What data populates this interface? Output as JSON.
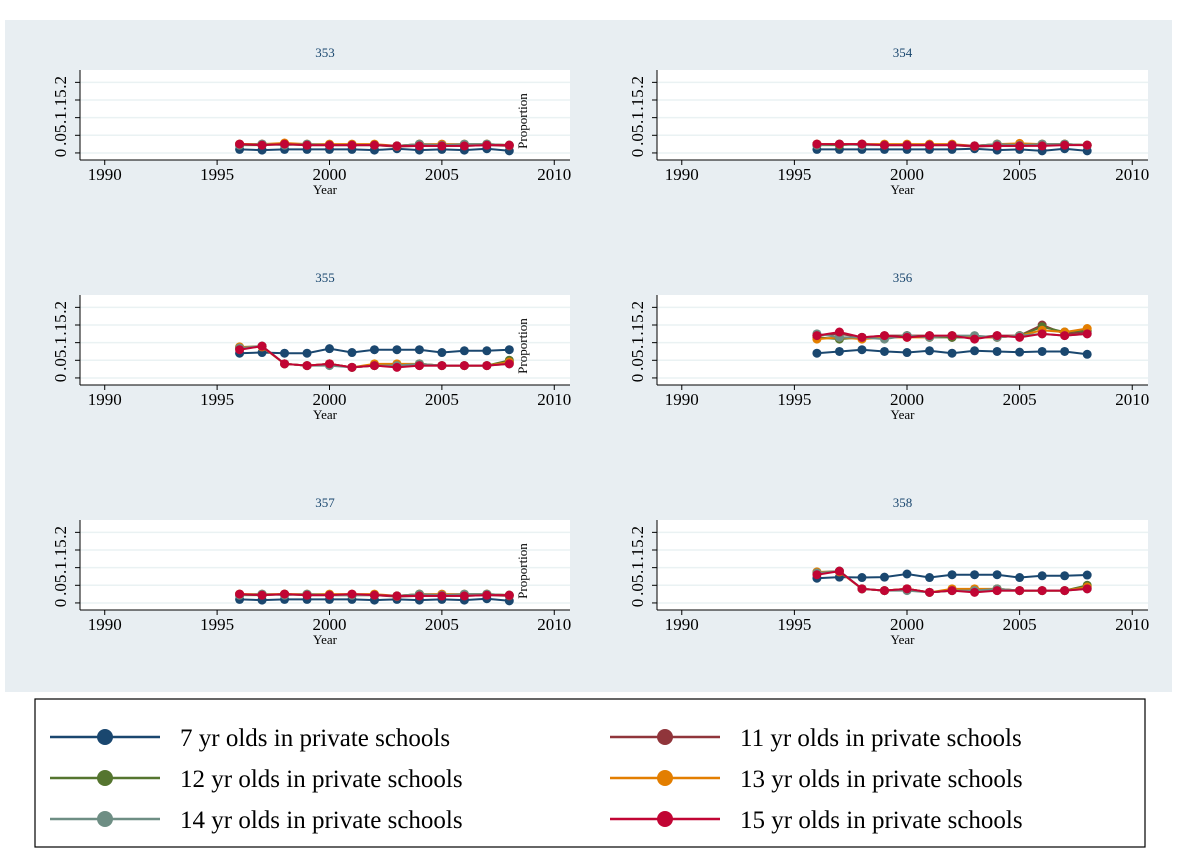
{
  "legend": [
    {
      "name": "7 yr olds in private schools",
      "color": "#1a476f"
    },
    {
      "name": "11 yr olds in private schools",
      "color": "#90353b"
    },
    {
      "name": "12 yr olds in private schools",
      "color": "#55752f"
    },
    {
      "name": "13 yr olds in private schools",
      "color": "#e37e00"
    },
    {
      "name": "14 yr olds in private schools",
      "color": "#6e8e84"
    },
    {
      "name": "15 yr olds in private schools",
      "color": "#c10534"
    }
  ],
  "chart_data": [
    {
      "type": "line",
      "title": "353",
      "xlabel": "Year",
      "ylabel": "Proportion",
      "x": [
        1996,
        1997,
        1998,
        1999,
        2000,
        2001,
        2002,
        2003,
        2004,
        2005,
        2006,
        2007,
        2008
      ],
      "xlim": [
        1988.9,
        2010.7
      ],
      "xticks": [
        1990,
        1995,
        2000,
        2005,
        2010
      ],
      "ylim": [
        -0.02,
        0.235
      ],
      "yticks": [
        0,
        {
          "value": 0.05,
          "label": ".05"
        },
        {
          "value": 0.1,
          "label": ".1"
        },
        {
          "value": 0.15,
          "label": ".15"
        },
        {
          "value": 0.2,
          "label": ".2"
        }
      ],
      "grid": true,
      "series": [
        {
          "values": [
            0.01,
            0.008,
            0.01,
            0.01,
            0.01,
            0.01,
            0.008,
            0.012,
            0.008,
            0.01,
            0.008,
            0.012,
            0.006
          ]
        },
        {
          "values": [
            0.025,
            0.025,
            0.025,
            0.022,
            0.022,
            0.022,
            0.022,
            0.018,
            0.02,
            0.02,
            0.02,
            0.022,
            0.02
          ]
        },
        {
          "values": [
            0.022,
            0.022,
            0.025,
            0.022,
            0.022,
            0.022,
            0.022,
            0.02,
            0.025,
            0.022,
            0.022,
            0.025,
            0.022
          ]
        },
        {
          "values": [
            0.025,
            0.025,
            0.028,
            0.025,
            0.025,
            0.025,
            0.025,
            0.02,
            0.025,
            0.025,
            0.025,
            0.025,
            0.022
          ]
        },
        {
          "values": [
            0.022,
            0.025,
            0.022,
            0.025,
            0.022,
            0.022,
            0.022,
            0.02,
            0.025,
            0.022,
            0.025,
            0.025,
            0.022
          ]
        },
        {
          "values": [
            0.025,
            0.022,
            0.025,
            0.022,
            0.022,
            0.022,
            0.022,
            0.02,
            0.02,
            0.02,
            0.02,
            0.022,
            0.022
          ]
        }
      ]
    },
    {
      "type": "line",
      "title": "354",
      "xlabel": "Year",
      "x": [
        1996,
        1997,
        1998,
        1999,
        2000,
        2001,
        2002,
        2003,
        2004,
        2005,
        2006,
        2007,
        2008
      ],
      "xlim": [
        1988.9,
        2010.7
      ],
      "xticks": [
        1990,
        1995,
        2000,
        2005,
        2010
      ],
      "ylim": [
        -0.02,
        0.235
      ],
      "yticks": [
        0,
        {
          "value": 0.05,
          "label": ".05"
        },
        {
          "value": 0.1,
          "label": ".1"
        },
        {
          "value": 0.15,
          "label": ".15"
        },
        {
          "value": 0.2,
          "label": ".2"
        }
      ],
      "grid": true,
      "series": [
        {
          "values": [
            0.01,
            0.01,
            0.01,
            0.01,
            0.01,
            0.01,
            0.01,
            0.012,
            0.008,
            0.01,
            0.006,
            0.012,
            0.006
          ]
        },
        {
          "values": [
            0.025,
            0.025,
            0.025,
            0.022,
            0.022,
            0.022,
            0.022,
            0.018,
            0.02,
            0.02,
            0.022,
            0.025,
            0.022
          ]
        },
        {
          "values": [
            0.022,
            0.022,
            0.025,
            0.022,
            0.022,
            0.022,
            0.022,
            0.02,
            0.025,
            0.022,
            0.025,
            0.025,
            0.022
          ]
        },
        {
          "values": [
            0.025,
            0.025,
            0.025,
            0.025,
            0.025,
            0.025,
            0.025,
            0.02,
            0.025,
            0.027,
            0.025,
            0.025,
            0.022
          ]
        },
        {
          "values": [
            0.022,
            0.025,
            0.022,
            0.022,
            0.022,
            0.022,
            0.022,
            0.02,
            0.025,
            0.022,
            0.025,
            0.025,
            0.022
          ]
        },
        {
          "values": [
            0.025,
            0.025,
            0.025,
            0.022,
            0.022,
            0.022,
            0.022,
            0.02,
            0.02,
            0.02,
            0.02,
            0.022,
            0.022
          ]
        }
      ]
    },
    {
      "type": "line",
      "title": "355",
      "xlabel": "Year",
      "ylabel": "Proportion",
      "x": [
        1996,
        1997,
        1998,
        1999,
        2000,
        2001,
        2002,
        2003,
        2004,
        2005,
        2006,
        2007,
        2008
      ],
      "xlim": [
        1988.9,
        2010.7
      ],
      "xticks": [
        1990,
        1995,
        2000,
        2005,
        2010
      ],
      "ylim": [
        -0.02,
        0.235
      ],
      "yticks": [
        0,
        {
          "value": 0.05,
          "label": ".05"
        },
        {
          "value": 0.1,
          "label": ".1"
        },
        {
          "value": 0.15,
          "label": ".15"
        },
        {
          "value": 0.2,
          "label": ".2"
        }
      ],
      "grid": true,
      "series": [
        {
          "values": [
            0.07,
            0.072,
            0.07,
            0.07,
            0.083,
            0.072,
            0.08,
            0.08,
            0.08,
            0.072,
            0.077,
            0.077,
            0.08
          ]
        },
        {
          "values": [
            0.085,
            0.09,
            0.04,
            0.035,
            0.04,
            0.03,
            0.035,
            0.035,
            0.035,
            0.035,
            0.035,
            0.035,
            0.045
          ]
        },
        {
          "values": [
            0.087,
            0.09,
            0.04,
            0.035,
            0.04,
            0.03,
            0.035,
            0.035,
            0.04,
            0.035,
            0.035,
            0.035,
            0.05
          ]
        },
        {
          "values": [
            0.088,
            0.088,
            0.04,
            0.035,
            0.04,
            0.03,
            0.04,
            0.04,
            0.04,
            0.035,
            0.035,
            0.035,
            0.045
          ]
        },
        {
          "values": [
            0.085,
            0.09,
            0.04,
            0.035,
            0.035,
            0.03,
            0.035,
            0.035,
            0.04,
            0.035,
            0.035,
            0.035,
            0.04
          ]
        },
        {
          "values": [
            0.08,
            0.09,
            0.04,
            0.035,
            0.04,
            0.03,
            0.035,
            0.03,
            0.035,
            0.035,
            0.035,
            0.035,
            0.04
          ]
        }
      ]
    },
    {
      "type": "line",
      "title": "356",
      "xlabel": "Year",
      "x": [
        1996,
        1997,
        1998,
        1999,
        2000,
        2001,
        2002,
        2003,
        2004,
        2005,
        2006,
        2007,
        2008
      ],
      "xlim": [
        1988.9,
        2010.7
      ],
      "xticks": [
        1990,
        1995,
        2000,
        2005,
        2010
      ],
      "ylim": [
        -0.02,
        0.235
      ],
      "yticks": [
        0,
        {
          "value": 0.05,
          "label": ".05"
        },
        {
          "value": 0.1,
          "label": ".1"
        },
        {
          "value": 0.15,
          "label": ".15"
        },
        {
          "value": 0.2,
          "label": ".2"
        }
      ],
      "grid": true,
      "series": [
        {
          "values": [
            0.07,
            0.075,
            0.08,
            0.075,
            0.072,
            0.077,
            0.07,
            0.077,
            0.075,
            0.073,
            0.075,
            0.075,
            0.067
          ]
        },
        {
          "values": [
            0.12,
            0.125,
            0.115,
            0.12,
            0.12,
            0.12,
            0.115,
            0.115,
            0.12,
            0.12,
            0.15,
            0.125,
            0.13
          ]
        },
        {
          "values": [
            0.115,
            0.11,
            0.115,
            0.115,
            0.12,
            0.115,
            0.115,
            0.115,
            0.115,
            0.12,
            0.145,
            0.13,
            0.135
          ]
        },
        {
          "values": [
            0.11,
            0.115,
            0.11,
            0.115,
            0.115,
            0.115,
            0.12,
            0.115,
            0.115,
            0.12,
            0.135,
            0.13,
            0.14
          ]
        },
        {
          "values": [
            0.125,
            0.115,
            0.115,
            0.11,
            0.12,
            0.115,
            0.12,
            0.12,
            0.115,
            0.12,
            0.125,
            0.12,
            0.125
          ]
        },
        {
          "values": [
            0.12,
            0.13,
            0.115,
            0.12,
            0.115,
            0.12,
            0.12,
            0.11,
            0.12,
            0.115,
            0.125,
            0.12,
            0.125
          ]
        }
      ]
    },
    {
      "type": "line",
      "title": "357",
      "xlabel": "Year",
      "ylabel": "Proportion",
      "x": [
        1996,
        1997,
        1998,
        1999,
        2000,
        2001,
        2002,
        2003,
        2004,
        2005,
        2006,
        2007,
        2008
      ],
      "xlim": [
        1988.9,
        2010.7
      ],
      "xticks": [
        1990,
        1995,
        2000,
        2005,
        2010
      ],
      "ylim": [
        -0.02,
        0.235
      ],
      "yticks": [
        0,
        {
          "value": 0.05,
          "label": ".05"
        },
        {
          "value": 0.1,
          "label": ".1"
        },
        {
          "value": 0.15,
          "label": ".15"
        },
        {
          "value": 0.2,
          "label": ".2"
        }
      ],
      "grid": true,
      "series": [
        {
          "values": [
            0.01,
            0.008,
            0.01,
            0.01,
            0.01,
            0.01,
            0.008,
            0.01,
            0.008,
            0.01,
            0.008,
            0.012,
            0.006
          ]
        },
        {
          "values": [
            0.025,
            0.022,
            0.025,
            0.022,
            0.022,
            0.022,
            0.022,
            0.018,
            0.02,
            0.02,
            0.02,
            0.022,
            0.02
          ]
        },
        {
          "values": [
            0.022,
            0.022,
            0.025,
            0.022,
            0.022,
            0.022,
            0.022,
            0.02,
            0.025,
            0.022,
            0.022,
            0.025,
            0.022
          ]
        },
        {
          "values": [
            0.025,
            0.025,
            0.025,
            0.025,
            0.025,
            0.025,
            0.025,
            0.02,
            0.025,
            0.025,
            0.025,
            0.025,
            0.022
          ]
        },
        {
          "values": [
            0.022,
            0.025,
            0.022,
            0.025,
            0.022,
            0.022,
            0.022,
            0.02,
            0.025,
            0.022,
            0.025,
            0.025,
            0.022
          ]
        },
        {
          "values": [
            0.025,
            0.022,
            0.025,
            0.022,
            0.022,
            0.025,
            0.022,
            0.02,
            0.02,
            0.02,
            0.02,
            0.022,
            0.022
          ]
        }
      ]
    },
    {
      "type": "line",
      "title": "358",
      "xlabel": "Year",
      "x": [
        1996,
        1997,
        1998,
        1999,
        2000,
        2001,
        2002,
        2003,
        2004,
        2005,
        2006,
        2007,
        2008
      ],
      "xlim": [
        1988.9,
        2010.7
      ],
      "xticks": [
        1990,
        1995,
        2000,
        2005,
        2010
      ],
      "ylim": [
        -0.02,
        0.235
      ],
      "yticks": [
        0,
        {
          "value": 0.05,
          "label": ".05"
        },
        {
          "value": 0.1,
          "label": ".1"
        },
        {
          "value": 0.15,
          "label": ".15"
        },
        {
          "value": 0.2,
          "label": ".2"
        }
      ],
      "grid": true,
      "series": [
        {
          "values": [
            0.07,
            0.073,
            0.072,
            0.073,
            0.082,
            0.072,
            0.08,
            0.08,
            0.08,
            0.072,
            0.077,
            0.077,
            0.079
          ]
        },
        {
          "values": [
            0.085,
            0.09,
            0.04,
            0.035,
            0.04,
            0.03,
            0.035,
            0.035,
            0.035,
            0.035,
            0.035,
            0.035,
            0.045
          ]
        },
        {
          "values": [
            0.087,
            0.09,
            0.04,
            0.035,
            0.04,
            0.03,
            0.035,
            0.035,
            0.04,
            0.035,
            0.035,
            0.035,
            0.05
          ]
        },
        {
          "values": [
            0.088,
            0.088,
            0.04,
            0.035,
            0.04,
            0.03,
            0.04,
            0.04,
            0.04,
            0.035,
            0.035,
            0.035,
            0.045
          ]
        },
        {
          "values": [
            0.085,
            0.09,
            0.04,
            0.035,
            0.035,
            0.03,
            0.035,
            0.035,
            0.04,
            0.035,
            0.035,
            0.035,
            0.04
          ]
        },
        {
          "values": [
            0.08,
            0.09,
            0.04,
            0.035,
            0.04,
            0.03,
            0.035,
            0.03,
            0.035,
            0.035,
            0.035,
            0.035,
            0.04
          ]
        }
      ]
    }
  ]
}
